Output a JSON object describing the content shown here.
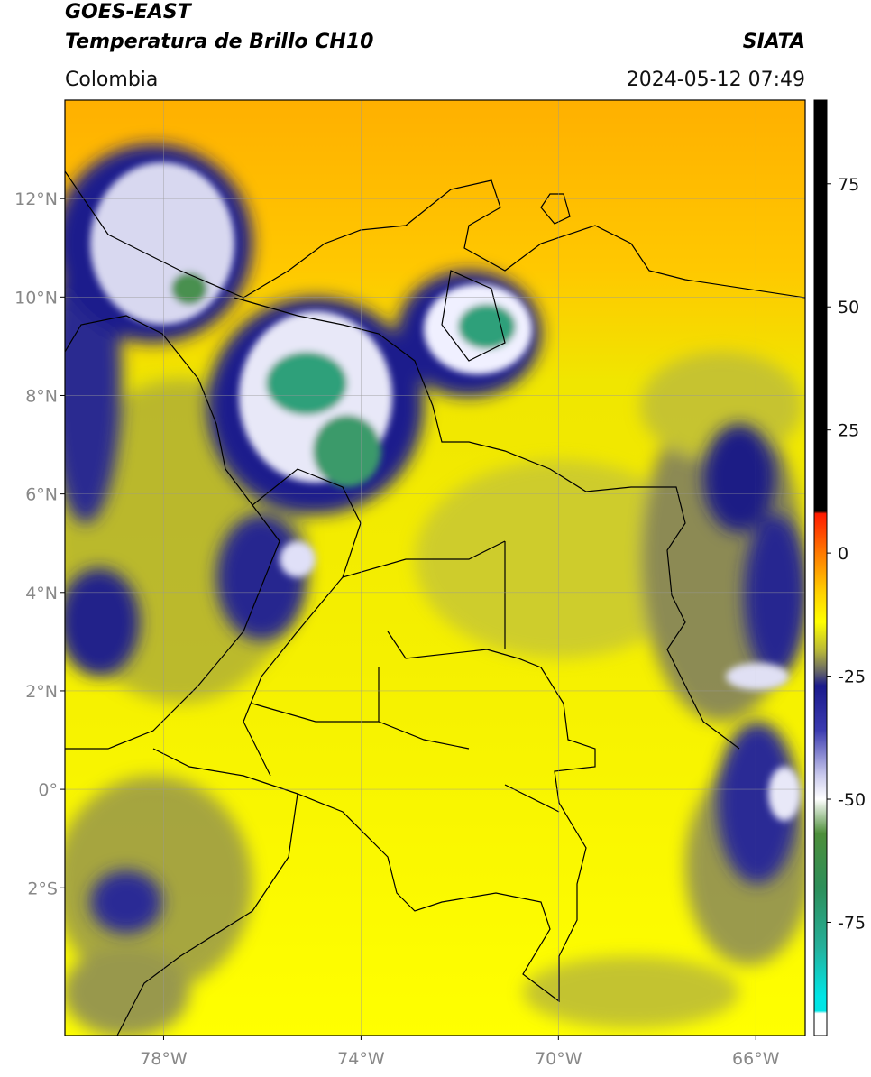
{
  "header": {
    "satellite": "GOES-EAST",
    "product": "Temperatura de Brillo CH10",
    "region": "Colombia",
    "source": "SIATA",
    "datetime": "2024-05-12 07:49"
  },
  "map": {
    "lon_range": [
      -80,
      -65
    ],
    "lat_range": [
      -5,
      14
    ],
    "lon_ticks": [
      {
        "value": -78,
        "label": "78°W"
      },
      {
        "value": -74,
        "label": "74°W"
      },
      {
        "value": -70,
        "label": "70°W"
      },
      {
        "value": -66,
        "label": "66°W"
      }
    ],
    "lat_ticks": [
      {
        "value": 12,
        "label": "12°N"
      },
      {
        "value": 10,
        "label": "10°N"
      },
      {
        "value": 8,
        "label": "8°N"
      },
      {
        "value": 6,
        "label": "6°N"
      },
      {
        "value": 4,
        "label": "4°N"
      },
      {
        "value": 2,
        "label": "2°N"
      },
      {
        "value": 0,
        "label": "0°"
      },
      {
        "value": -2,
        "label": "2°S"
      }
    ],
    "grid": true
  },
  "colorbar": {
    "range": [
      -98,
      92
    ],
    "ticks": [
      75,
      50,
      25,
      0,
      -25,
      -50,
      -75
    ],
    "stops": [
      {
        "value": 92,
        "color": "#000000"
      },
      {
        "value": 8.5,
        "color": "#000000"
      },
      {
        "value": 8,
        "color": "#ff1a00"
      },
      {
        "value": 0,
        "color": "#ff7a00"
      },
      {
        "value": -8,
        "color": "#ffd000"
      },
      {
        "value": -14,
        "color": "#ffff00"
      },
      {
        "value": -20,
        "color": "#b5b53a"
      },
      {
        "value": -24,
        "color": "#666666"
      },
      {
        "value": -27,
        "color": "#1a1a8c"
      },
      {
        "value": -36,
        "color": "#3b3bb0"
      },
      {
        "value": -45,
        "color": "#c8c8ec"
      },
      {
        "value": -50,
        "color": "#ffffff"
      },
      {
        "value": -57,
        "color": "#4d8f3a"
      },
      {
        "value": -68,
        "color": "#2d8f5a"
      },
      {
        "value": -80,
        "color": "#25b09a"
      },
      {
        "value": -90,
        "color": "#00e5e5"
      },
      {
        "value": -93,
        "color": "#00e5e5"
      },
      {
        "value": -93.5,
        "color": "#ffffff"
      },
      {
        "value": -98,
        "color": "#ffffff"
      }
    ]
  }
}
